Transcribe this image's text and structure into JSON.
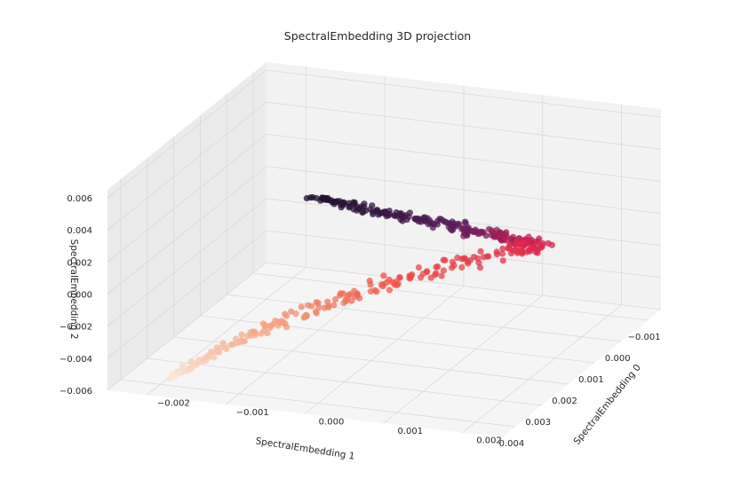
{
  "chart_data": {
    "type": "scatter",
    "title": "SpectralEmbedding 3D projection",
    "projection": "3d",
    "xlabel": "SpectralEmbedding 0",
    "ylabel": "SpectralEmbedding 1",
    "zlabel": "SpectralEmbedding 2",
    "xlim": [
      -0.0025,
      0.0025
    ],
    "ylim": [
      -0.0015,
      0.0045
    ],
    "zlim": [
      -0.006,
      0.0065
    ],
    "x_ticks": [
      -0.002,
      -0.001,
      0.0,
      0.001,
      0.002
    ],
    "x_tick_labels": [
      "−0.002",
      "−0.001",
      "0.000",
      "0.001",
      "0.002"
    ],
    "y_ticks": [
      -0.001,
      0.0,
      0.001,
      0.002,
      0.003,
      0.004
    ],
    "y_tick_labels": [
      "−0.001",
      "0.000",
      "0.001",
      "0.002",
      "0.003",
      "0.004"
    ],
    "z_ticks": [
      -0.006,
      -0.004,
      -0.002,
      0.0,
      0.002,
      0.004,
      0.006
    ],
    "z_tick_labels": [
      "−0.006",
      "−0.004",
      "−0.002",
      "0.000",
      "0.002",
      "0.004",
      "0.006"
    ],
    "grid": true,
    "colormap": "rocket (dark purple → red → cream)",
    "colors": {
      "pane": "#f2f2f2",
      "grid": "#d9d9d9",
      "dark": "#1b0f2e",
      "mid": "#d91e4f",
      "light": "#fbe4d6"
    },
    "series": [
      {
        "path_points": [
          {
            "x": -0.0002,
            "y": 0.0036,
            "z": 0.0062,
            "t": 0.0
          },
          {
            "x": 0.0006,
            "y": 0.0024,
            "z": 0.0038,
            "t": 0.18
          },
          {
            "x": 0.0012,
            "y": 0.0012,
            "z": 0.0016,
            "t": 0.36
          },
          {
            "x": 0.0015,
            "y": 0.0002,
            "z": -0.0002,
            "t": 0.5
          },
          {
            "x": 0.0012,
            "y": 0.0003,
            "z": -0.0008,
            "t": 0.58
          },
          {
            "x": 0.0003,
            "y": 0.0014,
            "z": -0.0013,
            "t": 0.68
          },
          {
            "x": -0.0006,
            "y": 0.0026,
            "z": -0.0024,
            "t": 0.8
          },
          {
            "x": -0.0014,
            "y": 0.0037,
            "z": -0.004,
            "t": 0.92
          },
          {
            "x": -0.0018,
            "y": 0.0043,
            "z": -0.0051,
            "t": 1.0
          }
        ]
      }
    ]
  }
}
